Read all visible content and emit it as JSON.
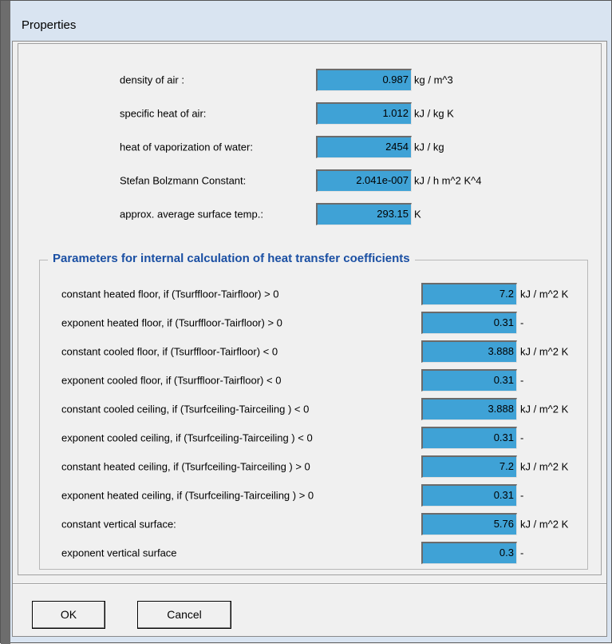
{
  "window": {
    "title": "Properties"
  },
  "properties": [
    {
      "label": "density of air :",
      "value": "0.987",
      "unit": "kg / m^3"
    },
    {
      "label": "specific heat of air:",
      "value": "1.012",
      "unit": "kJ / kg K"
    },
    {
      "label": "heat of vaporization of water:",
      "value": "2454",
      "unit": "kJ / kg"
    },
    {
      "label": "Stefan Bolzmann Constant:",
      "value": "2.041e-007",
      "unit": "kJ / h m^2 K^4"
    },
    {
      "label": "approx. average surface temp.:",
      "value": "293.15",
      "unit": "K"
    }
  ],
  "parameters": {
    "title": "Parameters for internal calculation of heat transfer coefficients",
    "rows": [
      {
        "label": "constant heated floor,  if  (Tsurffloor-Tairfloor) > 0",
        "value": "7.2",
        "unit": "kJ / m^2 K"
      },
      {
        "label": "exponent heated floor,  if  (Tsurffloor-Tairfloor) > 0",
        "value": "0.31",
        "unit": "-"
      },
      {
        "label": "constant cooled floor,  if  (Tsurffloor-Tairfloor) < 0",
        "value": "3.888",
        "unit": "kJ / m^2 K"
      },
      {
        "label": "exponent cooled floor,  if  (Tsurffloor-Tairfloor) < 0",
        "value": "0.31",
        "unit": "-"
      },
      {
        "label": "constant cooled ceiling,  if  (Tsurfceiling-Tairceiling ) < 0",
        "value": "3.888",
        "unit": "kJ / m^2 K"
      },
      {
        "label": "exponent cooled ceiling,  if  (Tsurfceiling-Tairceiling ) < 0",
        "value": "0.31",
        "unit": "-"
      },
      {
        "label": "constant heated ceiling,  if  (Tsurfceiling-Tairceiling ) > 0",
        "value": "7.2",
        "unit": "kJ / m^2 K"
      },
      {
        "label": "exponent heated ceiling,  if  (Tsurfceiling-Tairceiling ) > 0",
        "value": "0.31",
        "unit": "-"
      },
      {
        "label": "constant vertical surface:",
        "value": "5.76",
        "unit": "kJ / m^2 K"
      },
      {
        "label": "exponent vertical surface",
        "value": "0.3",
        "unit": "-"
      }
    ]
  },
  "buttons": [
    "OK",
    "Cancel"
  ]
}
